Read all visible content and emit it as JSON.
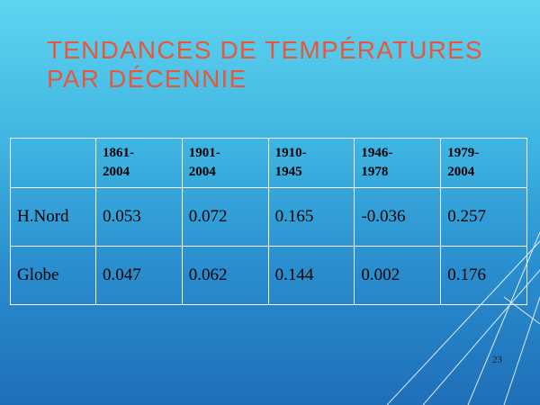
{
  "slide": {
    "title_line1": "TENDANCES DE TEMPÉRATURES",
    "title_line2": "PAR DÉCENNIE",
    "page_number": "23"
  },
  "table": {
    "columns": [
      {
        "line1": "1861-",
        "line2": "2004"
      },
      {
        "line1": "1901-",
        "line2": "2004"
      },
      {
        "line1": "1910-",
        "line2": "1945"
      },
      {
        "line1": "1946-",
        "line2": "1978"
      },
      {
        "line1": "1979-",
        "line2": "2004"
      }
    ],
    "rows": [
      {
        "label": "H.Nord",
        "values": [
          "0.053",
          "0.072",
          "0.165",
          "-0.036",
          "0.257"
        ]
      },
      {
        "label": "Globe",
        "values": [
          "0.047",
          "0.062",
          "0.144",
          "0.002",
          "0.176"
        ]
      }
    ]
  },
  "colors": {
    "title": "#e8573a",
    "table_border": "#ffffff",
    "background_top": "#5fd4f0",
    "background_bottom": "#1f6fb8"
  }
}
